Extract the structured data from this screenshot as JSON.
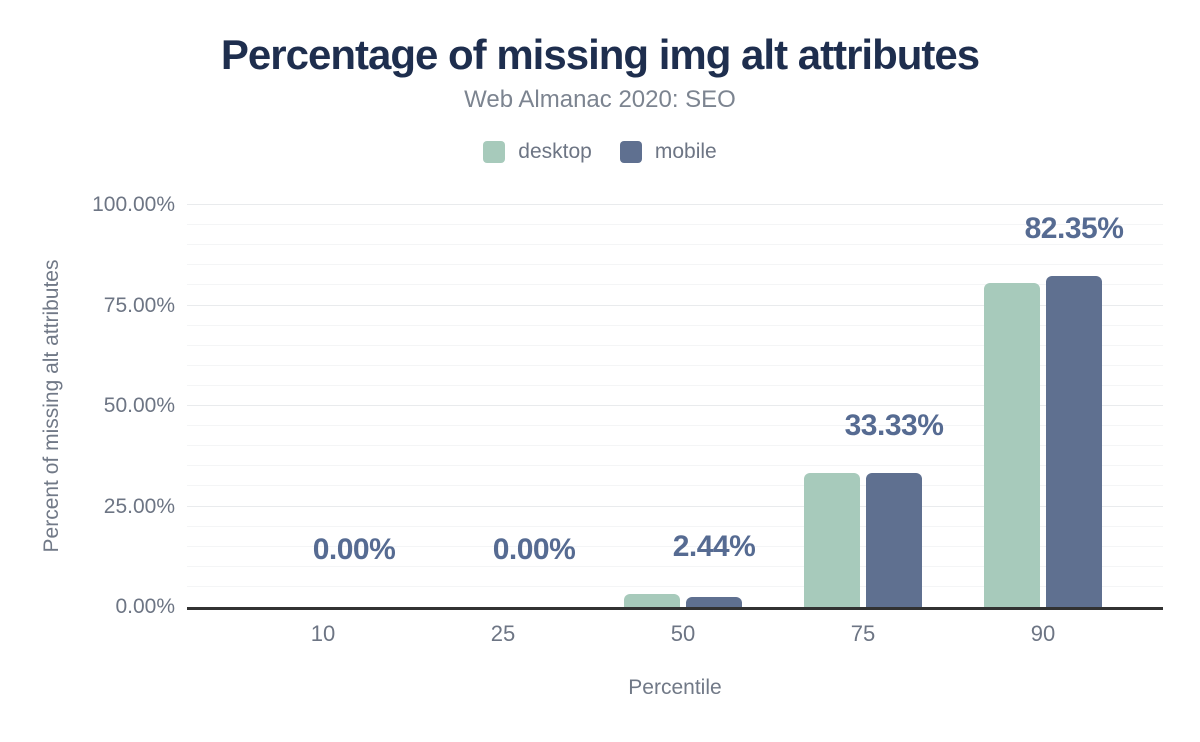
{
  "chart_data": {
    "type": "bar",
    "title": "Percentage of missing img alt attributes",
    "subtitle": "Web Almanac 2020: SEO",
    "xlabel": "Percentile",
    "ylabel": "Percent of missing alt attributes",
    "categories": [
      "10",
      "25",
      "50",
      "75",
      "90"
    ],
    "series": [
      {
        "name": "desktop",
        "color": "#a7cabb",
        "values": [
          0,
          0,
          3.2,
          33.33,
          80.5
        ]
      },
      {
        "name": "mobile",
        "color": "#5f7090",
        "values": [
          0,
          0,
          2.44,
          33.33,
          82.35
        ]
      }
    ],
    "data_labels": [
      "0.00%",
      "0.00%",
      "2.44%",
      "33.33%",
      "82.35%"
    ],
    "y_ticks": [
      {
        "value": 0,
        "label": "0.00%"
      },
      {
        "value": 25,
        "label": "25.00%"
      },
      {
        "value": 50,
        "label": "50.00%"
      },
      {
        "value": 75,
        "label": "75.00%"
      },
      {
        "value": 100,
        "label": "100.00%"
      }
    ],
    "ylim": [
      0,
      100
    ],
    "grid": "horizontal, minor every 5%, major every 25%",
    "legend_position": "top",
    "colors": {
      "title": "#1e2e4e",
      "subtitle": "#7c8490",
      "tick_text": "#6d7584",
      "data_label": "#566b92",
      "axis_line": "#323232",
      "grid_minor": "#f4f5f6",
      "grid_major": "#e9ebed",
      "background": "#ffffff"
    }
  }
}
